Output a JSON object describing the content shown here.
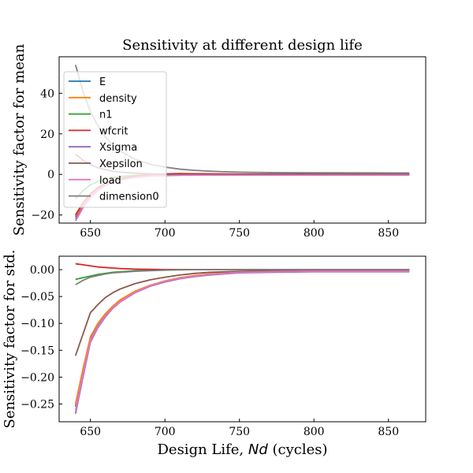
{
  "figure": {
    "title": "Sensitivity at different design life",
    "xlabel_prefix": "Design Life, ",
    "xlabel_symbol": "Nd",
    "xlabel_suffix": " (cycles)"
  },
  "colors": {
    "E": "#1f77b4",
    "density": "#ff7f0e",
    "n1": "#2ca02c",
    "wfcrit": "#d62728",
    "Xsigma": "#9467bd",
    "Xepsilon": "#8c564b",
    "load": "#e377c2",
    "dimension0": "#7f7f7f"
  },
  "chart_data": [
    {
      "type": "line",
      "title": "Sensitivity at different design life",
      "xlabel": "",
      "ylabel": "Sensitivity factor for mean",
      "xlim": [
        629,
        875
      ],
      "ylim": [
        -24,
        58
      ],
      "xticks": [
        650,
        700,
        750,
        800,
        850
      ],
      "yticks": [
        -20,
        0,
        20,
        40
      ],
      "ytick_labels": [
        "−20",
        "0",
        "20",
        "40"
      ],
      "legend": "upper-left",
      "x": [
        640,
        645,
        650,
        655,
        660,
        665,
        670,
        680,
        690,
        700,
        710,
        720,
        730,
        740,
        750,
        770,
        800,
        830,
        864
      ],
      "series": [
        {
          "name": "E",
          "values": [
            -21,
            -15,
            -10.5,
            -7.2,
            -5.0,
            -3.5,
            -2.5,
            -1.3,
            -0.7,
            -0.4,
            -0.25,
            -0.15,
            -0.1,
            -0.05,
            -0.03,
            -0.02,
            -0.01,
            -0.01,
            -0.01
          ]
        },
        {
          "name": "density",
          "values": [
            -20.5,
            -14.8,
            -10.3,
            -7.1,
            -4.9,
            -3.4,
            -2.4,
            -1.2,
            -0.6,
            -0.35,
            -0.2,
            -0.12,
            -0.08,
            -0.05,
            -0.03,
            -0.02,
            -0.01,
            -0.01,
            -0.01
          ]
        },
        {
          "name": "n1",
          "values": [
            -12,
            -8,
            -5.2,
            -3.5,
            -2.4,
            -1.6,
            -1.1,
            -0.5,
            -0.2,
            -0.1,
            -0.05,
            -0.03,
            -0.02,
            -0.01,
            0,
            0,
            0,
            0,
            0
          ]
        },
        {
          "name": "wfcrit",
          "values": [
            -20,
            -14,
            -9.5,
            -6.5,
            -4.5,
            -3.1,
            -2.1,
            -0.9,
            -0.2,
            0.3,
            0.4,
            0.35,
            0.3,
            0.25,
            0.2,
            0.15,
            0.1,
            0.05,
            0.05
          ]
        },
        {
          "name": "Xsigma",
          "values": [
            -22,
            -16,
            -11,
            -7.6,
            -5.3,
            -3.7,
            -2.6,
            -1.4,
            -0.8,
            -0.5,
            -0.35,
            -0.3,
            -0.3,
            -0.3,
            -0.3,
            -0.3,
            -0.3,
            -0.3,
            -0.3
          ]
        },
        {
          "name": "Xepsilon",
          "values": [
            10,
            7,
            4.8,
            3.3,
            2.3,
            1.6,
            1.1,
            0.6,
            0.3,
            0.15,
            0.1,
            0.05,
            0.05,
            0.05,
            0.05,
            0.05,
            0.05,
            0.05,
            0.05
          ]
        },
        {
          "name": "load",
          "values": [
            -23,
            -16.5,
            -11.5,
            -8,
            -5.5,
            -3.9,
            -2.8,
            -1.5,
            -0.9,
            -0.6,
            -0.45,
            -0.4,
            -0.4,
            -0.4,
            -0.4,
            -0.4,
            -0.4,
            -0.4,
            -0.4
          ]
        },
        {
          "name": "dimension0",
          "values": [
            54,
            41,
            31,
            24,
            18.5,
            14.5,
            11.5,
            7.5,
            5,
            3.6,
            2.6,
            2.0,
            1.6,
            1.3,
            1.1,
            0.9,
            0.8,
            0.75,
            0.7
          ]
        }
      ]
    },
    {
      "type": "line",
      "title": "",
      "xlabel": "Design Life, Nd (cycles)",
      "ylabel": "Sensitivity factor for std.",
      "xlim": [
        629,
        875
      ],
      "ylim": [
        -0.283,
        0.025
      ],
      "xticks": [
        650,
        700,
        750,
        800,
        850
      ],
      "yticks": [
        -0.25,
        -0.2,
        -0.15,
        -0.1,
        -0.05,
        0.0
      ],
      "ytick_labels": [
        "−0.25",
        "−0.20",
        "−0.15",
        "−0.10",
        "−0.05",
        "0.00"
      ],
      "x": [
        640,
        645,
        650,
        655,
        660,
        665,
        670,
        680,
        690,
        700,
        710,
        720,
        730,
        740,
        750,
        770,
        800,
        830,
        864
      ],
      "series": [
        {
          "name": "E",
          "values": [
            -0.255,
            -0.19,
            -0.13,
            -0.105,
            -0.085,
            -0.07,
            -0.058,
            -0.042,
            -0.03,
            -0.022,
            -0.016,
            -0.012,
            -0.009,
            -0.007,
            -0.005,
            -0.004,
            -0.003,
            -0.003,
            -0.003
          ]
        },
        {
          "name": "density",
          "values": [
            -0.25,
            -0.185,
            -0.125,
            -0.1,
            -0.082,
            -0.068,
            -0.056,
            -0.04,
            -0.029,
            -0.021,
            -0.015,
            -0.011,
            -0.008,
            -0.006,
            -0.005,
            -0.004,
            -0.003,
            -0.003,
            -0.003
          ]
        },
        {
          "name": "n1",
          "values": [
            -0.018,
            -0.015,
            -0.012,
            -0.009,
            -0.007,
            -0.005,
            -0.004,
            -0.002,
            -0.001,
            0,
            0,
            0,
            0,
            0,
            0,
            0,
            0,
            0,
            0
          ]
        },
        {
          "name": "wfcrit",
          "values": [
            0.011,
            0.009,
            0.007,
            0.005,
            0.004,
            0.003,
            0.002,
            0.001,
            0.0005,
            0,
            0,
            0,
            0,
            0,
            0,
            0,
            0,
            0,
            0
          ]
        },
        {
          "name": "Xsigma",
          "values": [
            -0.268,
            -0.2,
            -0.135,
            -0.108,
            -0.088,
            -0.072,
            -0.06,
            -0.043,
            -0.031,
            -0.023,
            -0.017,
            -0.013,
            -0.01,
            -0.008,
            -0.006,
            -0.005,
            -0.004,
            -0.004,
            -0.004
          ]
        },
        {
          "name": "Xepsilon",
          "values": [
            -0.16,
            -0.12,
            -0.08,
            -0.065,
            -0.052,
            -0.043,
            -0.036,
            -0.026,
            -0.019,
            -0.014,
            -0.01,
            -0.007,
            -0.005,
            -0.004,
            -0.003,
            -0.002,
            -0.002,
            -0.001,
            -0.001
          ]
        },
        {
          "name": "load",
          "values": [
            -0.262,
            -0.195,
            -0.132,
            -0.106,
            -0.086,
            -0.071,
            -0.059,
            -0.042,
            -0.03,
            -0.022,
            -0.016,
            -0.012,
            -0.009,
            -0.007,
            -0.005,
            -0.004,
            -0.003,
            -0.003,
            -0.003
          ]
        },
        {
          "name": "dimension0",
          "values": [
            -0.028,
            -0.02,
            -0.014,
            -0.011,
            -0.008,
            -0.006,
            -0.005,
            -0.003,
            -0.002,
            -0.001,
            -0.0005,
            0,
            0,
            0,
            0,
            0,
            0,
            0,
            0
          ]
        }
      ]
    }
  ]
}
